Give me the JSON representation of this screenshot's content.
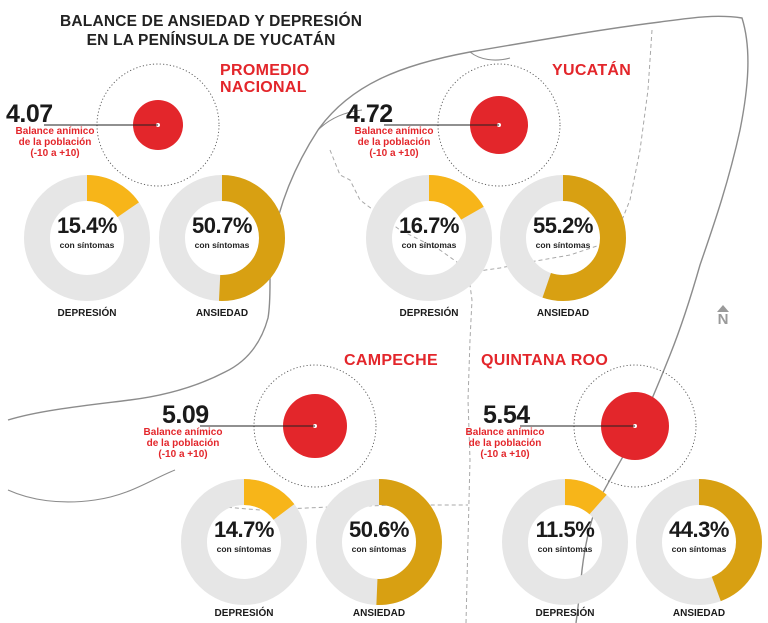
{
  "title": [
    "BALANCE DE ANSIEDAD Y DEPRESIÓN",
    "EN LA PENÍNSULA DE YUCATÁN"
  ],
  "score_label_lines": [
    "Balance anímico",
    "de la población",
    "(-10 a +10)"
  ],
  "sub_label": "con síntomas",
  "north_label": "N",
  "colors": {
    "red": "#e3262b",
    "depresion": "#f7b519",
    "ansiedad": "#d8a012",
    "ring_bg": "#e6e6e6",
    "map_line": "#8c8c8c"
  },
  "chart_data": {
    "type": "donut",
    "categories": [
      "DEPRESIÓN",
      "ANSIEDAD"
    ],
    "unit": "%",
    "regions": [
      {
        "key": "nacional",
        "name_lines": [
          "PROMEDIO",
          "NACIONAL"
        ],
        "balance": "4.07",
        "depresion": 15.4,
        "ansiedad": 50.7
      },
      {
        "key": "yucatan",
        "name_lines": [
          "YUCATÁN"
        ],
        "balance": "4.72",
        "depresion": 16.7,
        "ansiedad": 55.2
      },
      {
        "key": "campeche",
        "name_lines": [
          "CAMPECHE"
        ],
        "balance": "5.09",
        "depresion": 14.7,
        "ansiedad": 50.6
      },
      {
        "key": "quintana_roo",
        "name_lines": [
          "QUINTANA ROO"
        ],
        "balance": "5.54",
        "depresion": 11.5,
        "ansiedad": 44.3
      }
    ]
  }
}
